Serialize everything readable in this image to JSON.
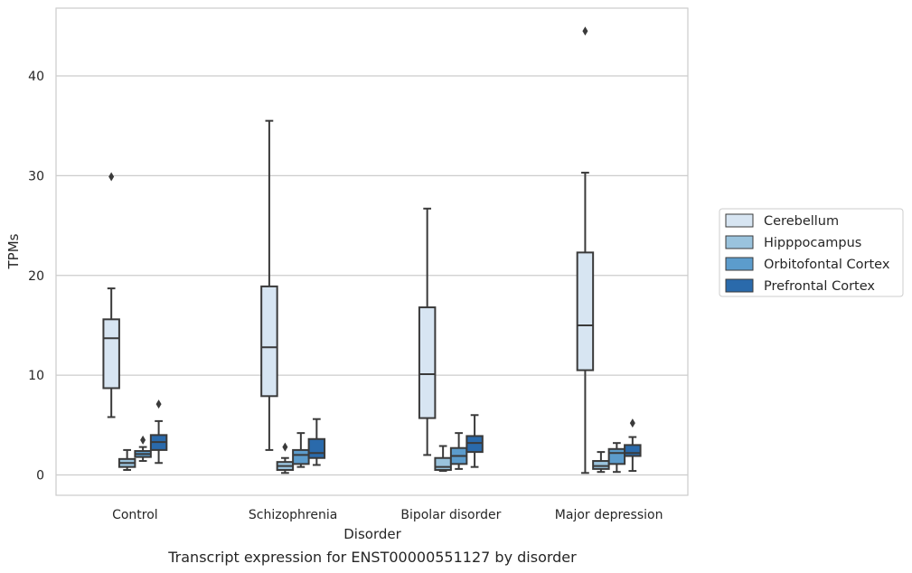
{
  "chart_data": {
    "type": "box",
    "caption": "Transcript expression for ENST00000551127 by disorder",
    "xlabel": "Disorder",
    "ylabel": "TPMs",
    "ylim": [
      -2,
      47
    ],
    "yticks": [
      0,
      10,
      20,
      30,
      40
    ],
    "grid": "horizontal",
    "legend_position": "right",
    "categories": [
      "Control",
      "Schizophrenia",
      "Bipolar disorder",
      "Major depression"
    ],
    "series": [
      {
        "name": "Cerebellum",
        "color": "#d7e5f2",
        "boxes": [
          {
            "whislo": 5.8,
            "q1": 8.7,
            "med": 13.7,
            "q3": 15.6,
            "whishi": 18.7,
            "fliers": [
              29.9
            ]
          },
          {
            "whislo": 2.5,
            "q1": 7.9,
            "med": 12.8,
            "q3": 18.9,
            "whishi": 35.5,
            "fliers": []
          },
          {
            "whislo": 2.0,
            "q1": 5.7,
            "med": 10.1,
            "q3": 16.8,
            "whishi": 26.7,
            "fliers": []
          },
          {
            "whislo": 0.2,
            "q1": 10.5,
            "med": 15.0,
            "q3": 22.3,
            "whishi": 30.3,
            "fliers": [
              44.5
            ]
          }
        ]
      },
      {
        "name": "Hipppocampus",
        "color": "#9ac3dd",
        "boxes": [
          {
            "whislo": 0.5,
            "q1": 0.8,
            "med": 1.2,
            "q3": 1.6,
            "whishi": 2.5,
            "fliers": []
          },
          {
            "whislo": 0.2,
            "q1": 0.5,
            "med": 0.9,
            "q3": 1.3,
            "whishi": 1.7,
            "fliers": [
              2.8
            ]
          },
          {
            "whislo": 0.4,
            "q1": 0.5,
            "med": 0.8,
            "q3": 1.7,
            "whishi": 2.9,
            "fliers": []
          },
          {
            "whislo": 0.3,
            "q1": 0.6,
            "med": 0.9,
            "q3": 1.4,
            "whishi": 2.3,
            "fliers": []
          }
        ]
      },
      {
        "name": "Orbitofontal Cortex",
        "color": "#5c9ccc",
        "boxes": [
          {
            "whislo": 1.4,
            "q1": 1.8,
            "med": 2.1,
            "q3": 2.4,
            "whishi": 2.8,
            "fliers": [
              3.5
            ]
          },
          {
            "whislo": 0.8,
            "q1": 1.1,
            "med": 2.0,
            "q3": 2.5,
            "whishi": 4.2,
            "fliers": []
          },
          {
            "whislo": 0.6,
            "q1": 1.1,
            "med": 1.9,
            "q3": 2.7,
            "whishi": 4.2,
            "fliers": []
          },
          {
            "whislo": 0.3,
            "q1": 1.1,
            "med": 2.2,
            "q3": 2.6,
            "whishi": 3.2,
            "fliers": []
          }
        ]
      },
      {
        "name": "Prefrontal Cortex",
        "color": "#2a6aab",
        "boxes": [
          {
            "whislo": 1.2,
            "q1": 2.5,
            "med": 3.3,
            "q3": 4.0,
            "whishi": 5.4,
            "fliers": [
              7.1
            ]
          },
          {
            "whislo": 1.0,
            "q1": 1.7,
            "med": 2.2,
            "q3": 3.6,
            "whishi": 5.6,
            "fliers": []
          },
          {
            "whislo": 0.8,
            "q1": 2.3,
            "med": 3.2,
            "q3": 3.9,
            "whishi": 6.0,
            "fliers": []
          },
          {
            "whislo": 0.4,
            "q1": 1.9,
            "med": 2.2,
            "q3": 3.0,
            "whishi": 3.8,
            "fliers": [
              5.2
            ]
          }
        ]
      }
    ]
  }
}
